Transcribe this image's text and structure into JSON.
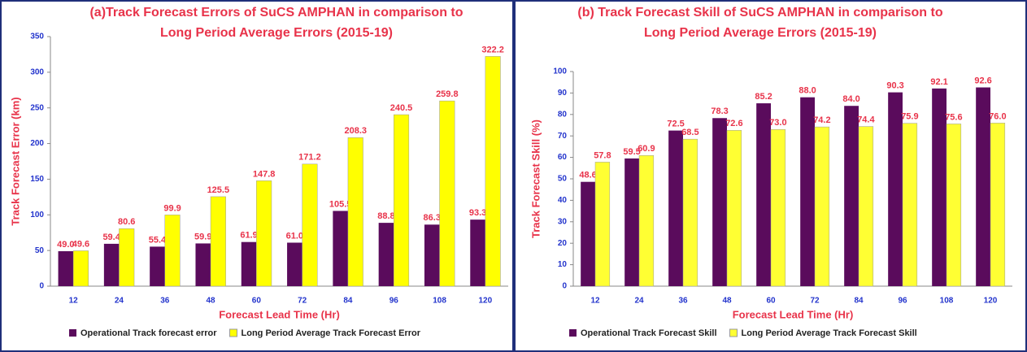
{
  "chart_data": [
    {
      "type": "bar",
      "title": [
        "(a)Track Forecast Errors of  SuCS AMPHAN in comparison to",
        "Long Period Average Errors (2015-19)"
      ],
      "xlabel": "Forecast Lead Time (Hr)",
      "ylabel": "Track Forecast Error (km)",
      "categories": [
        "12",
        "24",
        "36",
        "48",
        "60",
        "72",
        "84",
        "96",
        "108",
        "120"
      ],
      "series": [
        {
          "name": "Operational Track forecast error",
          "color": "#5a0b5c",
          "values": [
            49.0,
            59.4,
            55.4,
            59.9,
            61.9,
            61.0,
            105.5,
            88.8,
            86.3,
            93.3
          ],
          "value_labels": [
            "49.0",
            "59.4",
            "55.4",
            "59.9",
            "61.9",
            "61.0",
            "105.5",
            "88.8",
            "86.3",
            "93.3"
          ]
        },
        {
          "name": "Long Period Average Track Forecast Error",
          "color": "#ffff00",
          "values": [
            49.6,
            80.6,
            99.9,
            125.5,
            147.8,
            171.2,
            208.3,
            240.5,
            259.8,
            322.2
          ],
          "value_labels": [
            "49.6",
            "80.6",
            "99.9",
            "125.5",
            "147.8",
            "171.2",
            "208.3",
            "240.5",
            "259.8",
            "322.2"
          ]
        }
      ],
      "ylim": [
        0,
        350
      ],
      "yticks": [
        0,
        50,
        100,
        150,
        200,
        250,
        300,
        350
      ]
    },
    {
      "type": "bar",
      "title": [
        "(b) Track Forecast  Skill of  SuCS AMPHAN in comparison to",
        "Long Period Average Errors (2015-19)"
      ],
      "xlabel": "Forecast Lead Time (Hr)",
      "ylabel": "Track Forecast Skill (%)",
      "categories": [
        "12",
        "24",
        "36",
        "48",
        "60",
        "72",
        "84",
        "96",
        "108",
        "120"
      ],
      "series": [
        {
          "name": "Operational Track Forecast Skill",
          "color": "#5a0b5c",
          "values": [
            48.6,
            59.5,
            72.5,
            78.3,
            85.2,
            88.0,
            84.0,
            90.3,
            92.1,
            92.6
          ],
          "value_labels": [
            "48.6",
            "59.5",
            "72.5",
            "78.3",
            "85.2",
            "88.0",
            "84.0",
            "90.3",
            "92.1",
            "92.6"
          ]
        },
        {
          "name": "Long Period Average Track Forecast Skill",
          "color": "#ffff33",
          "values": [
            57.8,
            60.9,
            68.5,
            72.6,
            73.0,
            74.2,
            74.4,
            75.9,
            75.6,
            76.0
          ],
          "value_labels": [
            "57.8",
            "60.9",
            "68.5",
            "72.6",
            "73.0",
            "74.2",
            "74.4",
            "75.9",
            "75.6",
            "76.0"
          ]
        }
      ],
      "ylim": [
        0,
        100
      ],
      "yticks": [
        0,
        10,
        20,
        30,
        40,
        50,
        60,
        70,
        80,
        90,
        100
      ]
    }
  ]
}
